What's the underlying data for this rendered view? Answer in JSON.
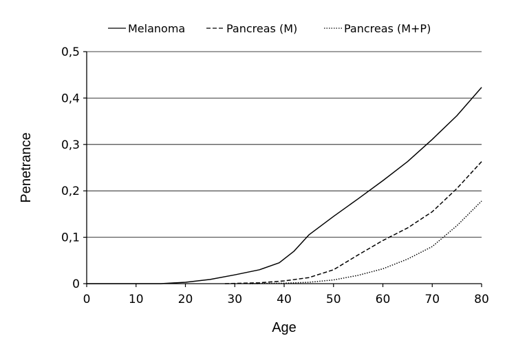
{
  "chart_data": {
    "type": "line",
    "xlabel": "Age",
    "ylabel": "Penetrance",
    "xlim": [
      0,
      80
    ],
    "ylim": [
      0,
      0.5
    ],
    "xticks": [
      "0",
      "10",
      "20",
      "30",
      "40",
      "50",
      "60",
      "70",
      "80"
    ],
    "yticks": [
      "0",
      "0,1",
      "0,2",
      "0,3",
      "0,4",
      "0,5"
    ],
    "grid": "horizontal",
    "legend_position": "top",
    "series": [
      {
        "name": "Melanoma",
        "line_style": "solid",
        "color": "#000000",
        "x": [
          0,
          15,
          20,
          25,
          30,
          35,
          39,
          42,
          45,
          50,
          55,
          60,
          65,
          70,
          75,
          80
        ],
        "y": [
          0,
          0,
          0.003,
          0.009,
          0.019,
          0.03,
          0.045,
          0.07,
          0.105,
          0.145,
          0.183,
          0.222,
          0.263,
          0.311,
          0.362,
          0.423
        ]
      },
      {
        "name": "Pancreas (M)",
        "line_style": "dashed",
        "color": "#000000",
        "x": [
          28,
          35,
          40,
          45,
          50,
          55,
          60,
          65,
          70,
          75,
          80
        ],
        "y": [
          0,
          0.002,
          0.006,
          0.013,
          0.03,
          0.062,
          0.093,
          0.12,
          0.155,
          0.205,
          0.263
        ]
      },
      {
        "name": "Pancreas (M+P)",
        "line_style": "dotted",
        "color": "#000000",
        "x": [
          33,
          40,
          45,
          50,
          55,
          60,
          65,
          70,
          75,
          80
        ],
        "y": [
          0,
          0.001,
          0.003,
          0.008,
          0.018,
          0.032,
          0.053,
          0.08,
          0.125,
          0.178
        ]
      }
    ]
  }
}
